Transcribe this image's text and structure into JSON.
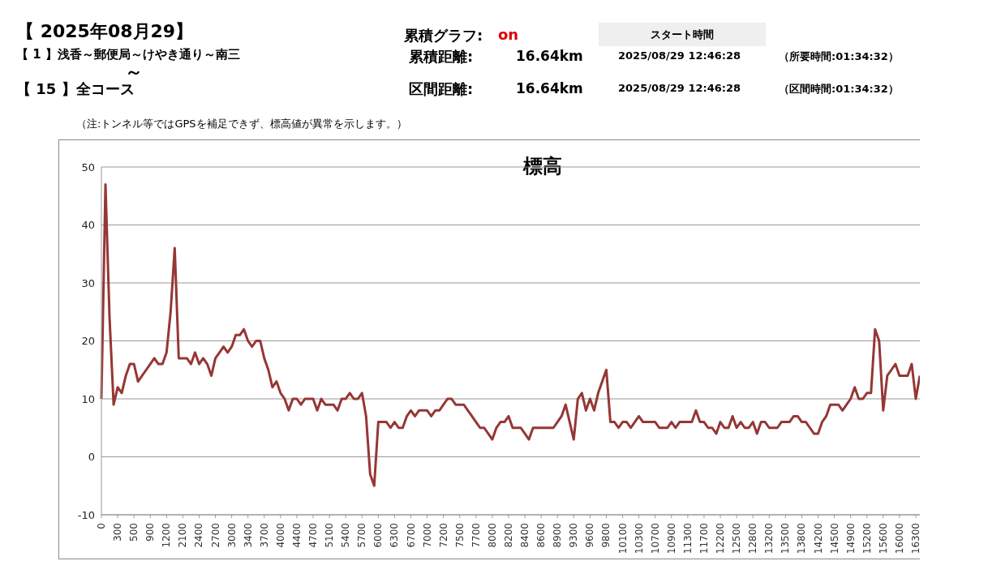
{
  "chart_data": {
    "type": "line",
    "title": "標高",
    "annotations": [
      "【 2025年08月29】",
      "累積グラフ:",
      "on",
      "スタート時間",
      "【 1 】浅香～郵便局～けやき通り～南三",
      "～",
      "累積距離:",
      "16.64km",
      "2025/08/29 12:46:28",
      "（所要時間:01:34:32）",
      "【 15 】全コース",
      "区間距離:",
      "16.64km",
      "2025/08/29 12:46:28",
      "（区間時間:01:34:32）",
      "（注:トンネル等ではGPSを補足できず、標高値が異常を示します。）"
    ],
    "categories": [
      "0",
      null,
      null,
      null,
      "300",
      null,
      null,
      null,
      "500",
      null,
      null,
      null,
      "900",
      null,
      null,
      null,
      "1200",
      null,
      null,
      null,
      "2100",
      null,
      null,
      null,
      "2400",
      null,
      null,
      null,
      "2700",
      null,
      null,
      null,
      "3000",
      null,
      null,
      null,
      "3400",
      null,
      null,
      null,
      "3700",
      null,
      null,
      null,
      "4000",
      null,
      null,
      null,
      "4400",
      null,
      null,
      null,
      "4700",
      null,
      null,
      null,
      "5100",
      null,
      null,
      null,
      "5400",
      null,
      null,
      null,
      "5700",
      null,
      null,
      null,
      "6000",
      null,
      null,
      null,
      "6300",
      null,
      null,
      null,
      "6700",
      null,
      null,
      null,
      "7000",
      null,
      null,
      null,
      "7200",
      null,
      null,
      null,
      "7500",
      null,
      null,
      null,
      "7700",
      null,
      null,
      null,
      "8000",
      null,
      null,
      null,
      "8200",
      null,
      null,
      null,
      "8400",
      null,
      null,
      null,
      "8600",
      null,
      null,
      null,
      "8900",
      null,
      null,
      null,
      "9300",
      null,
      null,
      null,
      "9600",
      null,
      null,
      null,
      "9800",
      null,
      null,
      null,
      "10100",
      null,
      null,
      null,
      "10300",
      null,
      null,
      null,
      "10700",
      null,
      null,
      null,
      "10900",
      null,
      null,
      null,
      "11300",
      null,
      null,
      null,
      "11700",
      null,
      null,
      null,
      "12200",
      null,
      null,
      null,
      "12500",
      null,
      null,
      null,
      "12800",
      null,
      null,
      null,
      "13200",
      null,
      null,
      null,
      "13500",
      null,
      null,
      null,
      "13800",
      null,
      null,
      null,
      "14200",
      null,
      null,
      null,
      "14500",
      null,
      null,
      null,
      "14900",
      null,
      null,
      null,
      "15200",
      null,
      null,
      null,
      "15600",
      null,
      null,
      null,
      "16000",
      null,
      null,
      null,
      "16300",
      null
    ],
    "series": [
      {
        "color": "#953735",
        "values": [
          10,
          47,
          24,
          9,
          12,
          11,
          14,
          16,
          16,
          13,
          14,
          15,
          16,
          17,
          16,
          16,
          18,
          25,
          36,
          17,
          17,
          17,
          16,
          18,
          16,
          17,
          16,
          14,
          17,
          18,
          19,
          18,
          19,
          21,
          21,
          22,
          20,
          19,
          20,
          20,
          17,
          15,
          12,
          13,
          11,
          10,
          8,
          10,
          10,
          9,
          10,
          10,
          10,
          8,
          10,
          9,
          9,
          9,
          8,
          10,
          10,
          11,
          10,
          10,
          11,
          7,
          -3,
          -5,
          6,
          6,
          6,
          5,
          6,
          5,
          5,
          7,
          8,
          7,
          8,
          8,
          8,
          7,
          8,
          8,
          9,
          10,
          10,
          9,
          9,
          9,
          8,
          7,
          6,
          5,
          5,
          4,
          3,
          5,
          6,
          6,
          7,
          5,
          5,
          5,
          4,
          3,
          5,
          5,
          5,
          5,
          5,
          5,
          6,
          7,
          9,
          6,
          3,
          10,
          11,
          8,
          10,
          8,
          11,
          13,
          15,
          6,
          6,
          5,
          6,
          6,
          5,
          6,
          7,
          6,
          6,
          6,
          6,
          5,
          5,
          5,
          6,
          5,
          6,
          6,
          6,
          6,
          8,
          6,
          6,
          5,
          5,
          4,
          6,
          5,
          5,
          7,
          5,
          6,
          5,
          5,
          6,
          4,
          6,
          6,
          5,
          5,
          5,
          6,
          6,
          6,
          7,
          7,
          6,
          6,
          5,
          4,
          4,
          6,
          7,
          9,
          9,
          9,
          8,
          9,
          10,
          12,
          10,
          10,
          11,
          11,
          22,
          20,
          8,
          14,
          15,
          16,
          14,
          14,
          14,
          16,
          10,
          14
        ]
      }
    ],
    "ylim": [
      -10,
      50
    ],
    "yticks": [
      -10,
      0,
      10,
      20,
      30,
      40,
      50
    ],
    "grid": "y",
    "legend": false,
    "marker": "none",
    "line_style": "solid"
  }
}
